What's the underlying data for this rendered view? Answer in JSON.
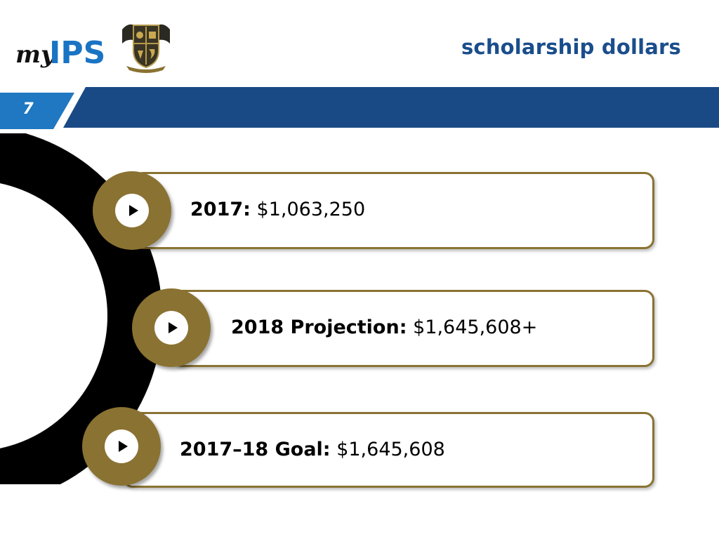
{
  "header": {
    "title": "scholarship dollars",
    "slide_number": "7",
    "banner_color": "#1a4a85",
    "tab_color": "#1f78c1",
    "accent_gold": "#8a7232"
  },
  "logos": {
    "myips": {
      "my": "my",
      "ips": "IPS"
    },
    "crest": "school-crest"
  },
  "items": [
    {
      "label": "2017:",
      "value": "$1,063,250"
    },
    {
      "label": "2018 Projection:",
      "value": "$1,645,608+"
    },
    {
      "label": "2017–18 Goal:",
      "value": "$1,645,608"
    }
  ]
}
